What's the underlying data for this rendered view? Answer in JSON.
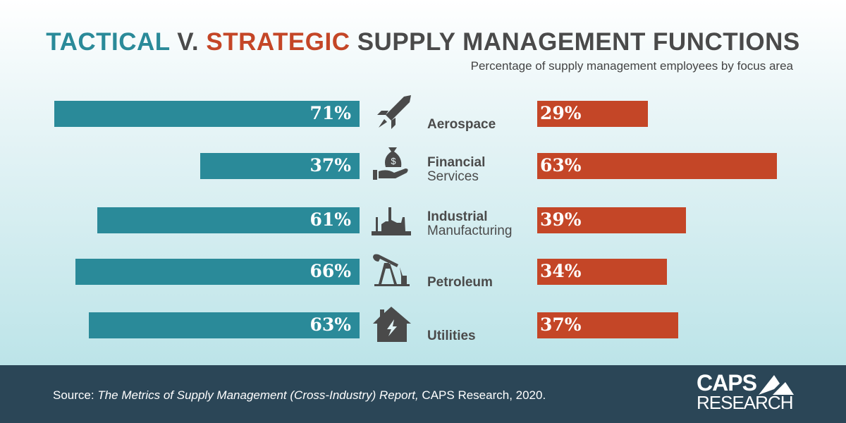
{
  "title": {
    "tactical": "TACTICAL",
    "v": " V. ",
    "strategic": "STRATEGIC",
    "rest": " SUPPLY MANAGEMENT FUNCTIONS"
  },
  "subtitle": "Percentage of supply management employees by focus area",
  "colors": {
    "tactical": "#2a8a99",
    "strategic": "#c44627",
    "footer": "#2b4657"
  },
  "chart_data": {
    "type": "bar",
    "categories": [
      "Aerospace",
      "Financial Services",
      "Industrial Manufacturing",
      "Petroleum",
      "Utilities"
    ],
    "label_lines": [
      [
        "Aerospace",
        ""
      ],
      [
        "Financial",
        "Services"
      ],
      [
        "Industrial",
        "Manufacturing"
      ],
      [
        "Petroleum",
        ""
      ],
      [
        "Utilities",
        ""
      ]
    ],
    "icons": [
      "rocket-icon",
      "money-bag-hand-icon",
      "factory-icon",
      "oil-pump-icon",
      "house-lightning-icon"
    ],
    "series": [
      {
        "name": "Tactical",
        "values": [
          71,
          37,
          61,
          66,
          63
        ],
        "labels": [
          "71%",
          "37%",
          "61%",
          "66%",
          "63%"
        ]
      },
      {
        "name": "Strategic",
        "values": [
          29,
          63,
          39,
          34,
          37
        ],
        "labels": [
          "29%",
          "63%",
          "39%",
          "34%",
          "37%"
        ]
      }
    ]
  },
  "footer": {
    "source_prefix": "Source: ",
    "source_title": "The Metrics of Supply Management (Cross-Industry) Report,",
    "source_suffix": " CAPS Research, 2020.",
    "logo_top": "CAPS",
    "logo_bottom": "RESEARCH"
  }
}
